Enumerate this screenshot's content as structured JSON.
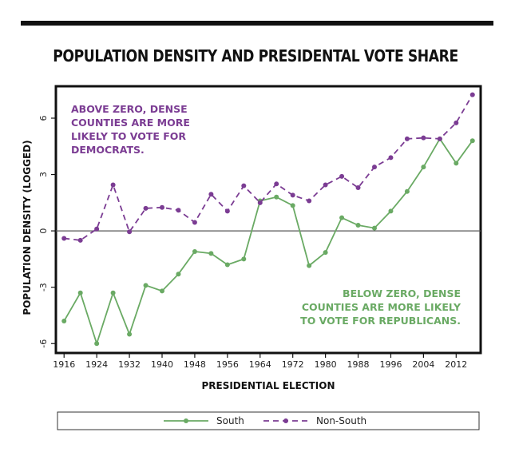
{
  "colors": {
    "south": "#6aaa64",
    "non_south": "#7b3c93",
    "zero_line": "#555555",
    "frame": "#111111"
  },
  "chart_data": {
    "type": "line",
    "title": "POPULATION DENSITY AND PRESIDENTAL VOTE SHARE",
    "xlabel": "PRESIDENTIAL ELECTION",
    "ylabel": "POPULATION DENSITY (LOGGED)",
    "xlim": [
      1914,
      2018
    ],
    "ylim": [
      -6.5,
      7.7
    ],
    "x_ticks": [
      1916,
      1924,
      1932,
      1940,
      1948,
      1956,
      1964,
      1972,
      1980,
      1988,
      1996,
      2004,
      2012
    ],
    "y_ticks": [
      -6,
      -3,
      0,
      3,
      6
    ],
    "grid": false,
    "zero_line": true,
    "legend_position": "bottom",
    "x": [
      1916,
      1920,
      1924,
      1928,
      1932,
      1936,
      1940,
      1944,
      1948,
      1952,
      1956,
      1960,
      1964,
      1968,
      1972,
      1976,
      1980,
      1984,
      1988,
      1992,
      1996,
      2000,
      2004,
      2008,
      2012,
      2016
    ],
    "series": [
      {
        "name": "South",
        "style": "solid",
        "values": [
          -4.8,
          -3.3,
          -6.0,
          -3.3,
          -5.5,
          -2.9,
          -3.2,
          -2.3,
          -1.1,
          -1.2,
          -1.8,
          -1.5,
          1.6,
          1.8,
          1.35,
          -1.85,
          -1.15,
          0.7,
          0.3,
          0.15,
          1.05,
          2.1,
          3.4,
          4.9,
          3.6,
          4.8
        ]
      },
      {
        "name": "Non-South",
        "style": "dashed",
        "values": [
          -0.4,
          -0.5,
          0.1,
          2.45,
          -0.05,
          1.2,
          1.25,
          1.1,
          0.45,
          1.95,
          1.05,
          2.4,
          1.5,
          2.5,
          1.9,
          1.6,
          2.45,
          2.9,
          2.3,
          3.4,
          3.9,
          4.9,
          4.95,
          4.9,
          5.75,
          7.25
        ]
      }
    ],
    "annotations": [
      {
        "lines": [
          "ABOVE ZERO, DENSE",
          "COUNTIES ARE MORE",
          "LIKELY TO VOTE FOR",
          "DEMOCRATS."
        ],
        "align": "left"
      },
      {
        "lines": [
          "BELOW ZERO, DENSE",
          "COUNTIES ARE MORE LIKELY",
          "TO VOTE FOR REPUBLICANS."
        ],
        "align": "right"
      }
    ]
  }
}
